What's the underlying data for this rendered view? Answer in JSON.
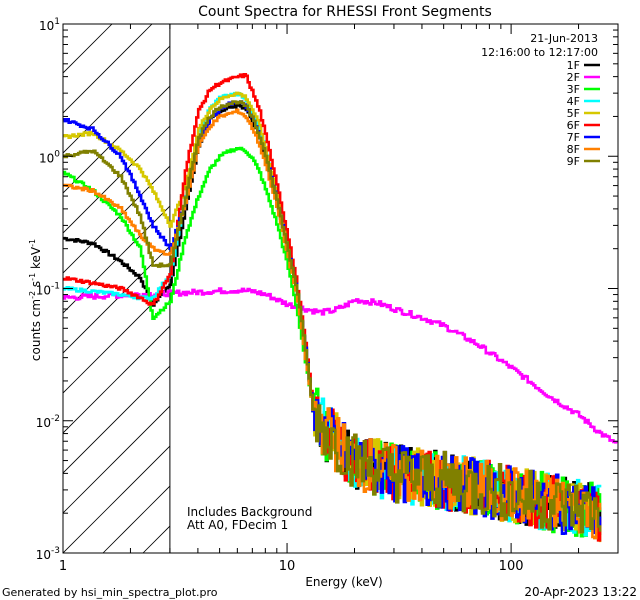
{
  "chart_data": {
    "type": "line",
    "title": "Count Spectra for RHESSI Front Segments",
    "xlabel": "Energy (keV)",
    "ylabel": "counts cm-2 s-1 keV-1",
    "xscale": "log",
    "yscale": "log",
    "xlim": [
      1,
      300
    ],
    "ylim": [
      0.001,
      10
    ],
    "x_tick_labels": [
      "1",
      "10",
      "100"
    ],
    "y_tick_labels": [
      {
        "base": "10",
        "exp": "-3"
      },
      {
        "base": "10",
        "exp": "-2"
      },
      {
        "base": "10",
        "exp": "-1"
      },
      {
        "base": "10",
        "exp": "0"
      },
      {
        "base": "10",
        "exp": "1"
      }
    ],
    "shaded_region_keV": [
      1,
      3
    ],
    "date": "21-Jun-2013",
    "time_range": "12:16:00 to 12:17:00",
    "notes": [
      "Includes Background",
      "Att A0, FDecim 1"
    ],
    "series": [
      {
        "name": "1F",
        "color": "#000000",
        "x": [
          1.0,
          1.35,
          1.8,
          2.2,
          2.5,
          3.0,
          3.5,
          4.0,
          4.5,
          5.0,
          5.5,
          6.0,
          6.5,
          7.0,
          7.5,
          8.0,
          9.0,
          10.0,
          11.0,
          12.0,
          13.0,
          15.0,
          20.0,
          30.0,
          50.0,
          100.0,
          150.0,
          200.0,
          250.0
        ],
        "y": [
          0.24,
          0.22,
          0.16,
          0.12,
          0.075,
          0.11,
          0.4,
          1.2,
          1.9,
          2.2,
          2.35,
          2.45,
          2.3,
          1.8,
          1.4,
          0.95,
          0.45,
          0.2,
          0.1,
          0.035,
          0.012,
          0.008,
          0.005,
          0.004,
          0.0035,
          0.0028,
          0.0024,
          0.0022,
          0.002
        ]
      },
      {
        "name": "2F",
        "color": "#ff00ff",
        "x": [
          1.0,
          2.0,
          3.0,
          4.0,
          5.0,
          6.0,
          7.0,
          8.0,
          9.0,
          10.0,
          12.0,
          14.0,
          16.0,
          18.0,
          20.0,
          25.0,
          30.0,
          40.0,
          50.0,
          70.0,
          100.0,
          150.0,
          200.0,
          250.0,
          300.0
        ],
        "y": [
          0.085,
          0.09,
          0.092,
          0.094,
          0.096,
          0.097,
          0.095,
          0.09,
          0.082,
          0.076,
          0.07,
          0.066,
          0.068,
          0.074,
          0.082,
          0.078,
          0.07,
          0.06,
          0.052,
          0.038,
          0.025,
          0.015,
          0.011,
          0.008,
          0.0065
        ]
      },
      {
        "name": "3F",
        "color": "#00ff00",
        "x": [
          1.0,
          1.35,
          1.8,
          2.2,
          2.5,
          3.0,
          3.5,
          4.0,
          4.5,
          5.0,
          5.5,
          6.0,
          6.5,
          7.0,
          7.5,
          8.0,
          9.0,
          10.0,
          11.0,
          12.0,
          13.0,
          15.0,
          20.0,
          30.0,
          50.0,
          100.0,
          150.0,
          200.0,
          250.0
        ],
        "y": [
          0.75,
          0.55,
          0.35,
          0.2,
          0.06,
          0.08,
          0.25,
          0.5,
          0.8,
          1.0,
          1.1,
          1.15,
          1.1,
          0.95,
          0.75,
          0.55,
          0.3,
          0.15,
          0.07,
          0.028,
          0.012,
          0.008,
          0.005,
          0.004,
          0.0035,
          0.0028,
          0.0024,
          0.0022,
          0.002
        ]
      },
      {
        "name": "4F",
        "color": "#00ffff",
        "x": [
          1.0,
          1.35,
          1.8,
          2.2,
          2.5,
          3.0,
          3.5,
          4.0,
          4.5,
          5.0,
          5.5,
          6.0,
          6.5,
          7.0,
          7.5,
          8.0,
          9.0,
          10.0,
          11.0,
          12.0,
          13.0,
          15.0,
          20.0,
          30.0,
          50.0,
          100.0,
          150.0,
          200.0,
          250.0
        ],
        "y": [
          0.1,
          0.095,
          0.09,
          0.085,
          0.085,
          0.13,
          0.5,
          1.5,
          2.3,
          2.8,
          2.9,
          2.95,
          2.7,
          2.1,
          1.6,
          1.1,
          0.5,
          0.22,
          0.1,
          0.035,
          0.012,
          0.008,
          0.005,
          0.004,
          0.0035,
          0.0028,
          0.0024,
          0.0022,
          0.002
        ]
      },
      {
        "name": "5F",
        "color": "#d6c800",
        "x": [
          1.0,
          1.35,
          1.8,
          2.2,
          2.5,
          3.0,
          3.5,
          4.0,
          4.5,
          5.0,
          5.5,
          6.0,
          6.5,
          7.0,
          7.5,
          8.0,
          9.0,
          10.0,
          11.0,
          12.0,
          13.0,
          15.0,
          20.0,
          30.0,
          50.0,
          100.0,
          150.0,
          200.0,
          250.0
        ],
        "y": [
          1.4,
          1.5,
          1.1,
          0.8,
          0.55,
          0.3,
          0.6,
          1.6,
          2.3,
          2.7,
          2.9,
          3.0,
          2.8,
          2.2,
          1.7,
          1.1,
          0.5,
          0.22,
          0.1,
          0.035,
          0.012,
          0.008,
          0.005,
          0.004,
          0.0035,
          0.0028,
          0.0024,
          0.0022,
          0.002
        ]
      },
      {
        "name": "6F",
        "color": "#ff0000",
        "x": [
          1.0,
          1.35,
          1.8,
          2.2,
          2.5,
          3.0,
          3.5,
          4.0,
          4.5,
          5.0,
          5.5,
          6.0,
          6.5,
          7.0,
          7.5,
          8.0,
          9.0,
          10.0,
          11.0,
          12.0,
          13.0,
          15.0,
          20.0,
          30.0,
          50.0,
          100.0,
          150.0,
          200.0,
          250.0
        ],
        "y": [
          0.12,
          0.11,
          0.1,
          0.085,
          0.075,
          0.13,
          0.8,
          2.2,
          3.2,
          3.6,
          3.8,
          4.0,
          4.1,
          3.0,
          2.2,
          1.4,
          0.6,
          0.25,
          0.11,
          0.038,
          0.013,
          0.008,
          0.005,
          0.004,
          0.0035,
          0.0028,
          0.0024,
          0.0022,
          0.002
        ]
      },
      {
        "name": "7F",
        "color": "#0000ff",
        "x": [
          1.0,
          1.35,
          1.8,
          2.2,
          2.5,
          3.0,
          3.5,
          4.0,
          4.5,
          5.0,
          5.5,
          6.0,
          6.5,
          7.0,
          7.5,
          8.0,
          9.0,
          10.0,
          11.0,
          12.0,
          13.0,
          15.0,
          20.0,
          30.0,
          50.0,
          100.0,
          150.0,
          200.0,
          250.0
        ],
        "y": [
          1.9,
          1.6,
          1.0,
          0.5,
          0.3,
          0.2,
          0.45,
          1.3,
          1.9,
          2.3,
          2.5,
          2.6,
          2.4,
          1.9,
          1.4,
          1.0,
          0.45,
          0.2,
          0.1,
          0.035,
          0.012,
          0.008,
          0.005,
          0.004,
          0.0035,
          0.0028,
          0.0024,
          0.0022,
          0.002
        ]
      },
      {
        "name": "8F",
        "color": "#ff8000",
        "x": [
          1.0,
          1.35,
          1.8,
          2.2,
          2.5,
          3.0,
          3.5,
          4.0,
          4.5,
          5.0,
          5.5,
          6.0,
          6.5,
          7.0,
          7.5,
          8.0,
          9.0,
          10.0,
          11.0,
          12.0,
          13.0,
          15.0,
          20.0,
          30.0,
          50.0,
          100.0,
          150.0,
          200.0,
          250.0
        ],
        "y": [
          0.6,
          0.55,
          0.4,
          0.25,
          0.2,
          0.18,
          0.45,
          1.2,
          1.7,
          2.0,
          2.1,
          2.2,
          2.0,
          1.6,
          1.2,
          0.85,
          0.4,
          0.18,
          0.09,
          0.03,
          0.012,
          0.008,
          0.005,
          0.004,
          0.0035,
          0.0028,
          0.0024,
          0.0022,
          0.002
        ]
      },
      {
        "name": "9F",
        "color": "#808000",
        "x": [
          1.0,
          1.35,
          1.8,
          2.2,
          2.5,
          3.0,
          3.5,
          4.0,
          4.5,
          5.0,
          5.5,
          6.0,
          6.5,
          7.0,
          7.5,
          8.0,
          9.0,
          10.0,
          11.0,
          12.0,
          13.0,
          15.0,
          20.0,
          30.0,
          50.0,
          100.0,
          150.0,
          200.0,
          250.0
        ],
        "y": [
          1.0,
          1.1,
          0.7,
          0.35,
          0.15,
          0.15,
          0.5,
          1.4,
          2.0,
          2.4,
          2.5,
          2.6,
          2.4,
          1.9,
          1.4,
          1.0,
          0.45,
          0.2,
          0.1,
          0.035,
          0.012,
          0.008,
          0.005,
          0.004,
          0.0035,
          0.0028,
          0.0024,
          0.0022,
          0.002
        ]
      }
    ]
  },
  "footer": {
    "generated_by": "Generated by hsi_min_spectra_plot.pro",
    "timestamp": "20-Apr-2023 13:22"
  }
}
